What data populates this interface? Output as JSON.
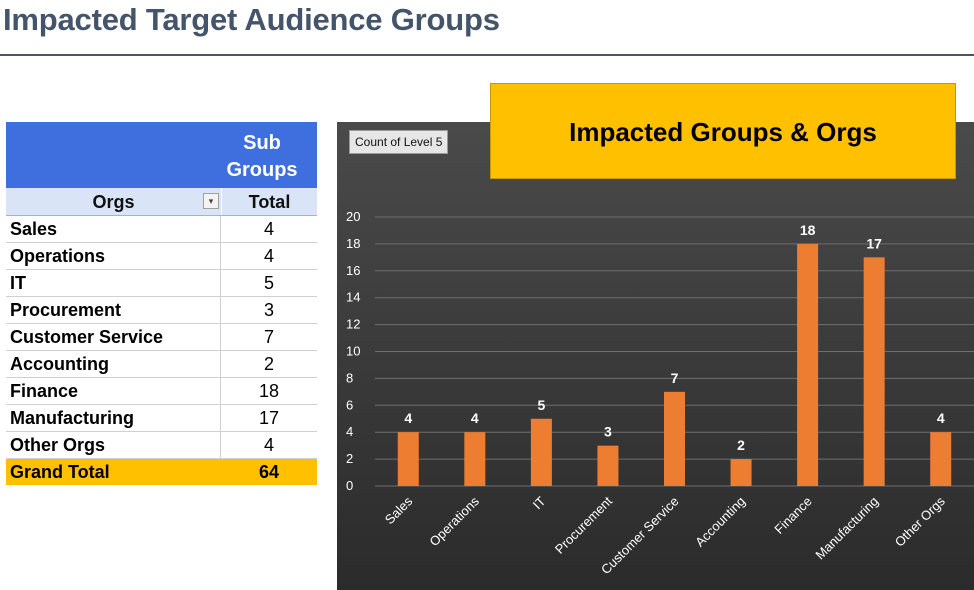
{
  "page": {
    "title": "Impacted Target Audience Groups"
  },
  "pivot": {
    "header": "Sub Groups",
    "col_orgs": "Orgs",
    "col_total": "Total",
    "filter_icon": "▾",
    "rows": [
      {
        "org": "Sales",
        "total": "4"
      },
      {
        "org": "Operations",
        "total": "4"
      },
      {
        "org": "IT",
        "total": "5"
      },
      {
        "org": "Procurement",
        "total": "3"
      },
      {
        "org": "Customer Service",
        "total": "7"
      },
      {
        "org": "Accounting",
        "total": "2"
      },
      {
        "org": "Finance",
        "total": "18"
      },
      {
        "org": "Manufacturing",
        "total": "17"
      },
      {
        "org": "Other Orgs",
        "total": "4"
      }
    ],
    "grand_label": "Grand Total",
    "grand_total": "64"
  },
  "chart_field_button": "Count of Level 5",
  "chart_data": {
    "type": "bar",
    "title": "Impacted Groups & Orgs",
    "categories": [
      "Sales",
      "Operations",
      "IT",
      "Procurement",
      "Customer Service",
      "Accounting",
      "Finance",
      "Manufacturing",
      "Other Orgs"
    ],
    "values": [
      4,
      4,
      5,
      3,
      7,
      2,
      18,
      17,
      4
    ],
    "ylim": [
      0,
      20
    ],
    "yticks": [
      0,
      2,
      4,
      6,
      8,
      10,
      12,
      14,
      16,
      18,
      20
    ],
    "grid": true,
    "bar_color": "#ed7d31",
    "data_labels": true
  },
  "colors": {
    "title": "#44546a",
    "pivot_header": "#3f6fde",
    "accent": "#ffc000"
  }
}
